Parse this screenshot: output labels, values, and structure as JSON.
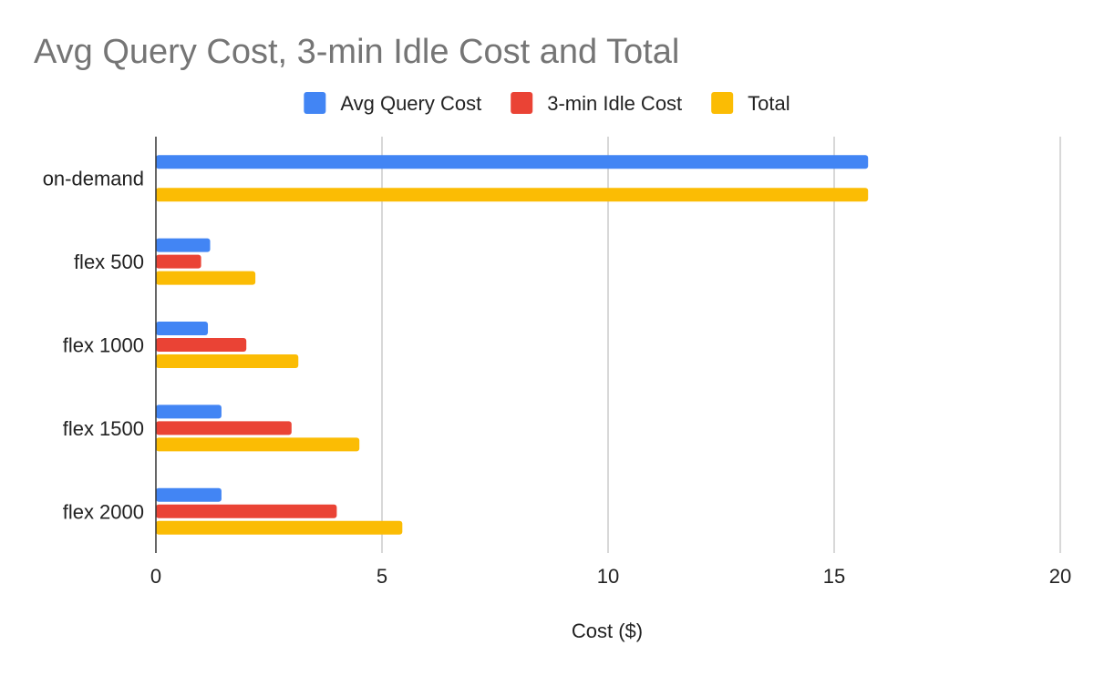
{
  "chart_data": {
    "type": "bar",
    "orientation": "horizontal",
    "title": "Avg Query Cost, 3-min Idle Cost and Total",
    "xlabel": "Cost ($)",
    "ylabel": "",
    "categories": [
      "on-demand",
      "flex 500",
      "flex 1000",
      "flex 1500",
      "flex 2000"
    ],
    "series": [
      {
        "name": "Avg Query Cost",
        "color": "#4285f4",
        "values": [
          15.75,
          1.2,
          1.15,
          1.45,
          1.45
        ]
      },
      {
        "name": "3-min Idle Cost",
        "color": "#ea4335",
        "values": [
          0,
          1.0,
          2.0,
          3.0,
          4.0
        ]
      },
      {
        "name": "Total",
        "color": "#fbbc04",
        "values": [
          15.75,
          2.2,
          3.15,
          4.5,
          5.45
        ]
      }
    ],
    "xlim": [
      0,
      20
    ],
    "xticks": [
      "0",
      "5",
      "10",
      "15",
      "20"
    ],
    "grid": "vertical",
    "legend_position": "top"
  }
}
